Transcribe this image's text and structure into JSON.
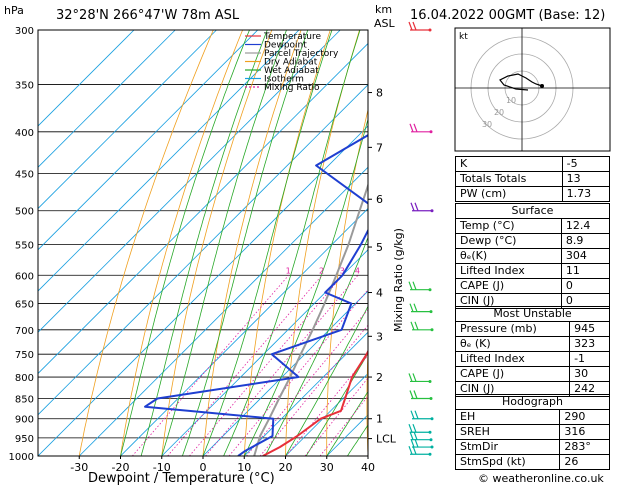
{
  "header": {
    "hpa_label": "hPa",
    "location": "32°28'N  266°47'W  78m  ASL",
    "km_label": "km",
    "asl_label": "ASL",
    "datetime": "16.04.2022  00GMT  (Base: 12)"
  },
  "footer": {
    "copyright": "© weatheronline.co.uk"
  },
  "colors": {
    "temperature": "#e8303a",
    "dewpoint": "#1f3fd1",
    "parcel": "#9a9a9a",
    "dry_adiabat": "#f0a020",
    "wet_adiabat": "#27a827",
    "isotherm": "#1aa0e0",
    "mixing_ratio": "#e020a0",
    "wind": "#00b0a0"
  },
  "legend": [
    {
      "label": "Temperature",
      "color": "#e8303a",
      "dash": false
    },
    {
      "label": "Dewpoint",
      "color": "#1f3fd1",
      "dash": false
    },
    {
      "label": "Parcel Trajectory",
      "color": "#9a9a9a",
      "dash": false
    },
    {
      "label": "Dry Adiabat",
      "color": "#f0a020",
      "dash": false
    },
    {
      "label": "Wet Adiabat",
      "color": "#27a827",
      "dash": false
    },
    {
      "label": "Isotherm",
      "color": "#1aa0e0",
      "dash": false
    },
    {
      "label": "Mixing Ratio",
      "color": "#e020a0",
      "dash": true
    }
  ],
  "chart_data": {
    "type": "line",
    "xlabel": "Dewpoint / Temperature (°C)",
    "ylabel_right": "Mixing Ratio (g/kg)",
    "pressure_ticks": [
      300,
      350,
      400,
      450,
      500,
      550,
      600,
      650,
      700,
      750,
      800,
      850,
      900,
      950,
      1000
    ],
    "temperature_ticks": [
      -30,
      -20,
      -10,
      0,
      10,
      20,
      30,
      40
    ],
    "xlim": [
      -40,
      40
    ],
    "ylim": [
      1000,
      300
    ],
    "km_ticks": [
      {
        "label": "8",
        "p": 358
      },
      {
        "label": "7",
        "p": 418
      },
      {
        "label": "6",
        "p": 484
      },
      {
        "label": "5",
        "p": 554
      },
      {
        "label": "4",
        "p": 630
      },
      {
        "label": "3",
        "p": 713
      },
      {
        "label": "2",
        "p": 800
      },
      {
        "label": "1",
        "p": 900
      },
      {
        "label": "LCL",
        "p": 952
      }
    ],
    "mixing_ratio_labels": [
      "1",
      "2",
      "3",
      "4",
      "6",
      "8",
      "10",
      "15",
      "20",
      "25"
    ],
    "series": [
      {
        "name": "Temperature",
        "points": [
          {
            "p": 1000,
            "t": 14.5
          },
          {
            "p": 975,
            "t": 16.5
          },
          {
            "p": 945,
            "t": 18.0
          },
          {
            "p": 900,
            "t": 19.5
          },
          {
            "p": 880,
            "t": 22.5
          },
          {
            "p": 850,
            "t": 20.5
          },
          {
            "p": 800,
            "t": 17.0
          },
          {
            "p": 750,
            "t": 15.0
          },
          {
            "p": 700,
            "t": 12.0
          },
          {
            "p": 650,
            "t": 9.0
          },
          {
            "p": 600,
            "t": 7.0
          },
          {
            "p": 550,
            "t": 2.0
          },
          {
            "p": 500,
            "t": -3.5
          },
          {
            "p": 450,
            "t": -8.0
          },
          {
            "p": 400,
            "t": -14.5
          },
          {
            "p": 350,
            "t": -22.0
          },
          {
            "p": 300,
            "t": -32.0
          }
        ]
      },
      {
        "name": "Dewpoint",
        "points": [
          {
            "p": 1000,
            "t": 8.5
          },
          {
            "p": 985,
            "t": 9.0
          },
          {
            "p": 945,
            "t": 12.0
          },
          {
            "p": 900,
            "t": 8.0
          },
          {
            "p": 870,
            "t": -26.0
          },
          {
            "p": 850,
            "t": -25.0
          },
          {
            "p": 800,
            "t": 4.0
          },
          {
            "p": 750,
            "t": -8.0
          },
          {
            "p": 700,
            "t": 3.0
          },
          {
            "p": 650,
            "t": -1.0
          },
          {
            "p": 630,
            "t": -10.0
          },
          {
            "p": 600,
            "t": -10.0
          },
          {
            "p": 550,
            "t": -13.0
          },
          {
            "p": 500,
            "t": -17.0
          },
          {
            "p": 440,
            "t": -43.0
          },
          {
            "p": 350,
            "t": -29.0
          },
          {
            "p": 300,
            "t": -42.0
          }
        ]
      },
      {
        "name": "Parcel Trajectory",
        "points": [
          {
            "p": 1000,
            "t": 12.4
          },
          {
            "p": 945,
            "t": 9.0
          },
          {
            "p": 900,
            "t": 7.0
          },
          {
            "p": 850,
            "t": 4.5
          },
          {
            "p": 800,
            "t": 2.0
          },
          {
            "p": 750,
            "t": -1.0
          },
          {
            "p": 700,
            "t": -4.0
          },
          {
            "p": 650,
            "t": -7.5
          },
          {
            "p": 600,
            "t": -11.5
          },
          {
            "p": 550,
            "t": -16.0
          },
          {
            "p": 500,
            "t": -21.5
          },
          {
            "p": 450,
            "t": -27.5
          },
          {
            "p": 400,
            "t": -34.5
          },
          {
            "p": 350,
            "t": -42.5
          },
          {
            "p": 300,
            "t": -52.0
          }
        ]
      }
    ],
    "wind_barbs": [
      {
        "p": 300,
        "color": "#e8303a"
      },
      {
        "p": 400,
        "color": "#e020a0"
      },
      {
        "p": 500,
        "color": "#7a20c0"
      },
      {
        "p": 625,
        "color": "#27c040"
      },
      {
        "p": 665,
        "color": "#27c040"
      },
      {
        "p": 700,
        "color": "#27c040"
      },
      {
        "p": 810,
        "color": "#27c040"
      },
      {
        "p": 850,
        "color": "#27c040"
      },
      {
        "p": 900,
        "color": "#00b0a0"
      },
      {
        "p": 935,
        "color": "#00b0a0"
      },
      {
        "p": 955,
        "color": "#00b0a0"
      },
      {
        "p": 975,
        "color": "#00b0a0"
      },
      {
        "p": 995,
        "color": "#00b0a0"
      }
    ]
  },
  "hodograph": {
    "label": "kt",
    "ring_labels": [
      "10",
      "20",
      "30"
    ]
  },
  "indices": {
    "rows": [
      {
        "label": "K",
        "value": "-5"
      },
      {
        "label": "Totals Totals",
        "value": "13"
      },
      {
        "label": "PW (cm)",
        "value": "1.73"
      }
    ],
    "surface": {
      "title": "Surface",
      "rows": [
        {
          "label": "Temp (°C)",
          "value": "12.4"
        },
        {
          "label": "Dewp (°C)",
          "value": "8.9"
        },
        {
          "label": "θₑ(K)",
          "value": "304"
        },
        {
          "label": "Lifted Index",
          "value": "11"
        },
        {
          "label": "CAPE (J)",
          "value": "0"
        },
        {
          "label": "CIN (J)",
          "value": "0"
        }
      ]
    },
    "most_unstable": {
      "title": "Most Unstable",
      "rows": [
        {
          "label": "Pressure (mb)",
          "value": "945"
        },
        {
          "label": "θₑ (K)",
          "value": "323"
        },
        {
          "label": "Lifted Index",
          "value": "-1"
        },
        {
          "label": "CAPE (J)",
          "value": "30"
        },
        {
          "label": "CIN (J)",
          "value": "242"
        }
      ]
    },
    "hodograph_box": {
      "title": "Hodograph",
      "rows": [
        {
          "label": "EH",
          "value": "290"
        },
        {
          "label": "SREH",
          "value": "316"
        },
        {
          "label": "StmDir",
          "value": "283°"
        },
        {
          "label": "StmSpd (kt)",
          "value": "26"
        }
      ]
    }
  }
}
